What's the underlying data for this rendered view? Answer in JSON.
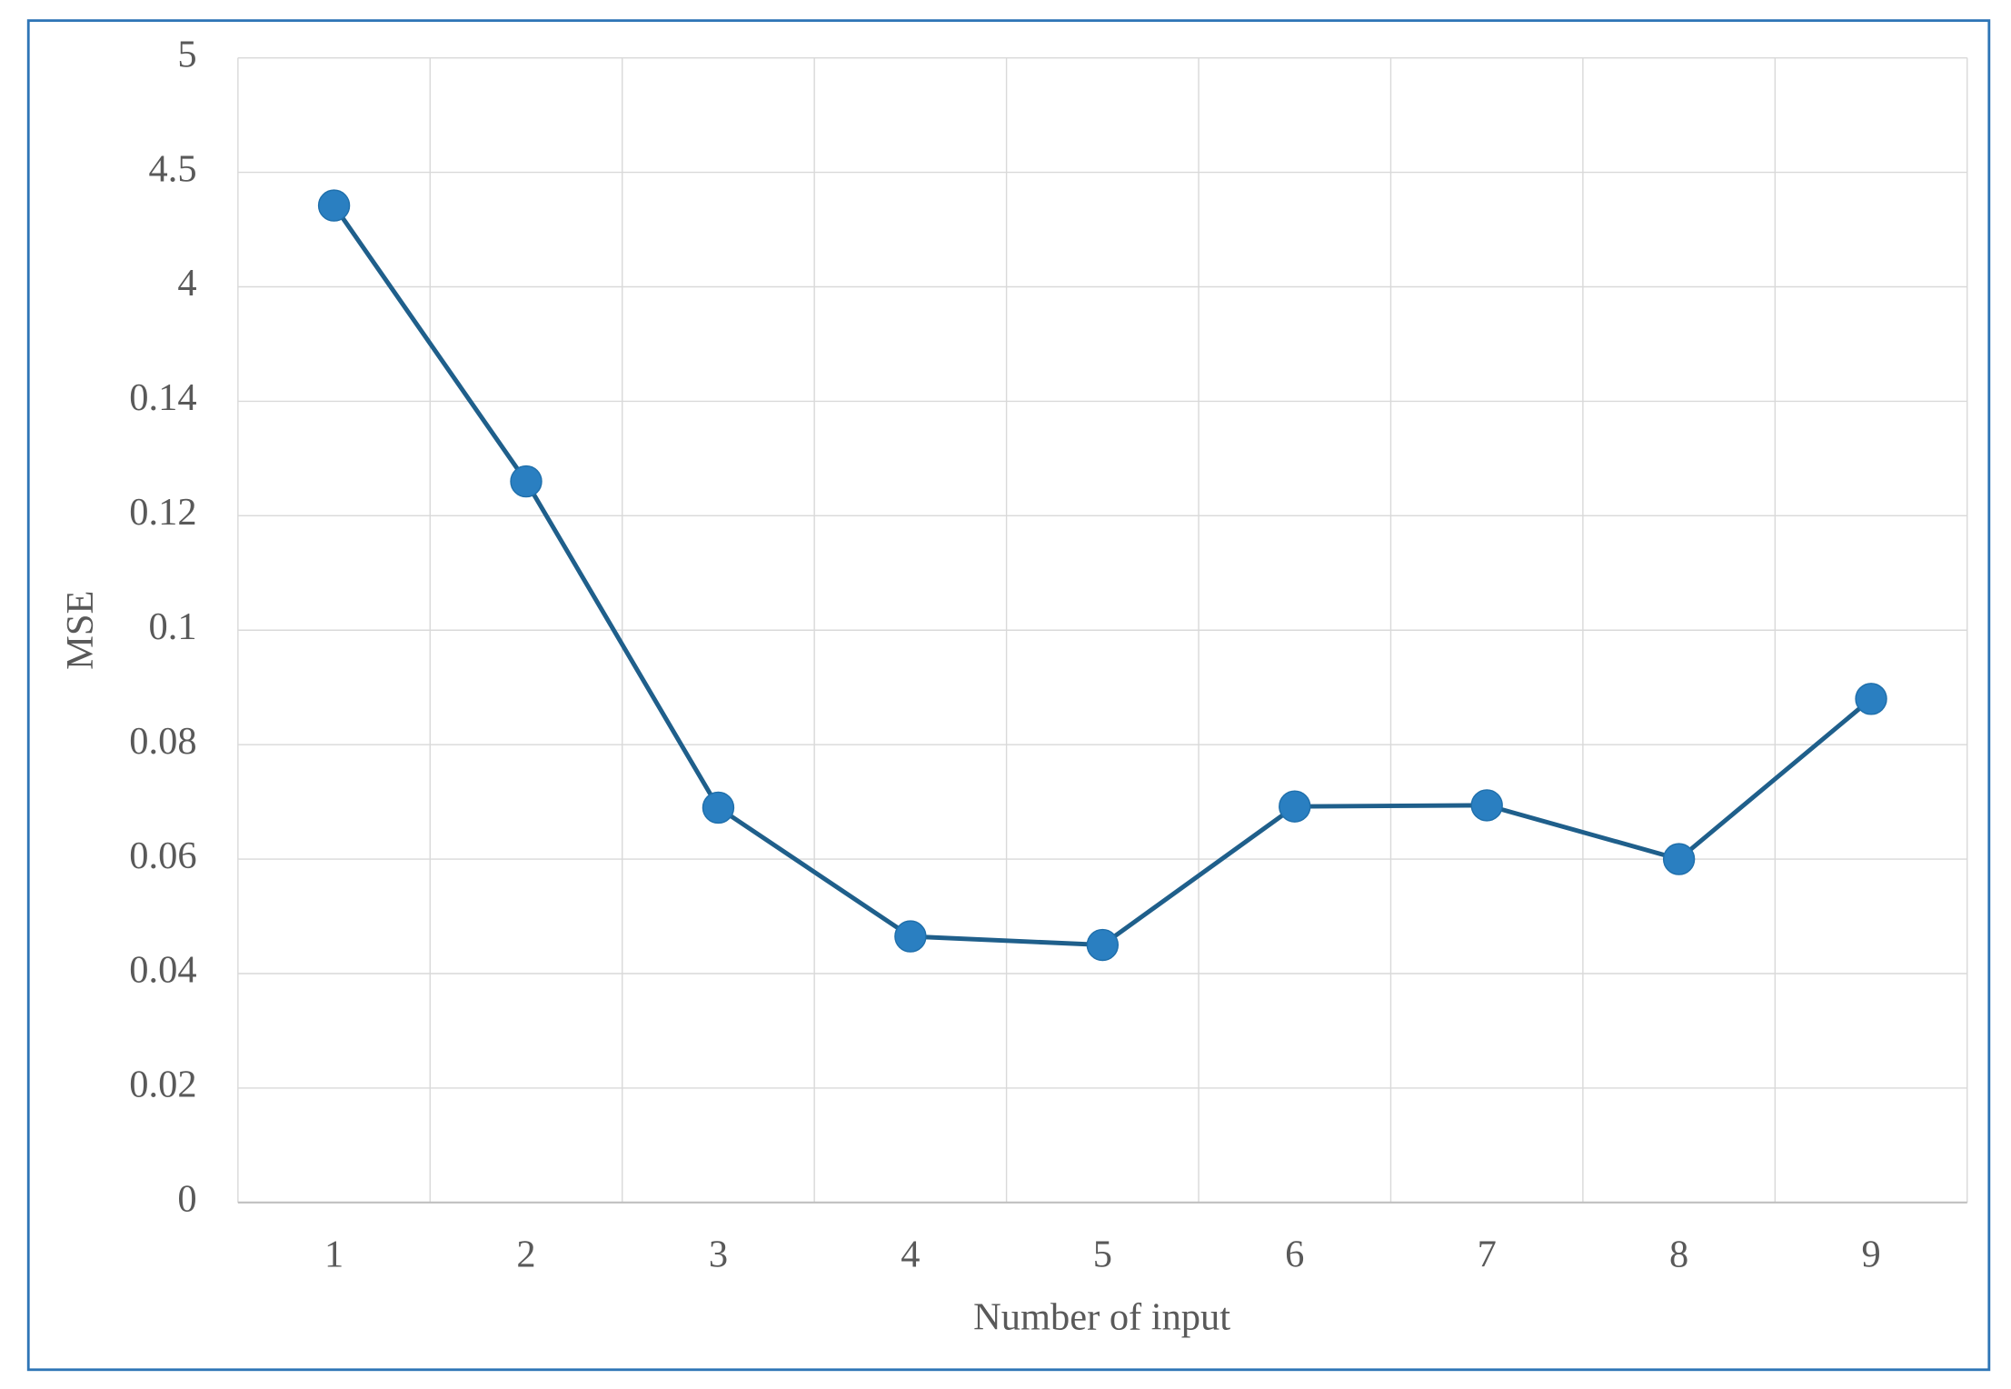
{
  "chart_data": {
    "type": "line",
    "x_label": "Number of input",
    "y_label": "MSE",
    "categories": [
      "1",
      "2",
      "3",
      "4",
      "5",
      "6",
      "7",
      "8",
      "9"
    ],
    "series": [
      {
        "name": "MSE",
        "color": "#2a7fc1",
        "values": [
          4.355,
          0.126,
          0.069,
          0.0465,
          0.045,
          0.0692,
          0.0694,
          0.06,
          0.088
        ]
      }
    ],
    "ylim": [
      0,
      5
    ],
    "yticks": [
      0,
      0.02,
      0.04,
      0.06,
      0.08,
      0.1,
      0.12,
      0.14,
      4,
      4.5,
      5
    ],
    "yscale": "piecewise",
    "grid": true
  }
}
